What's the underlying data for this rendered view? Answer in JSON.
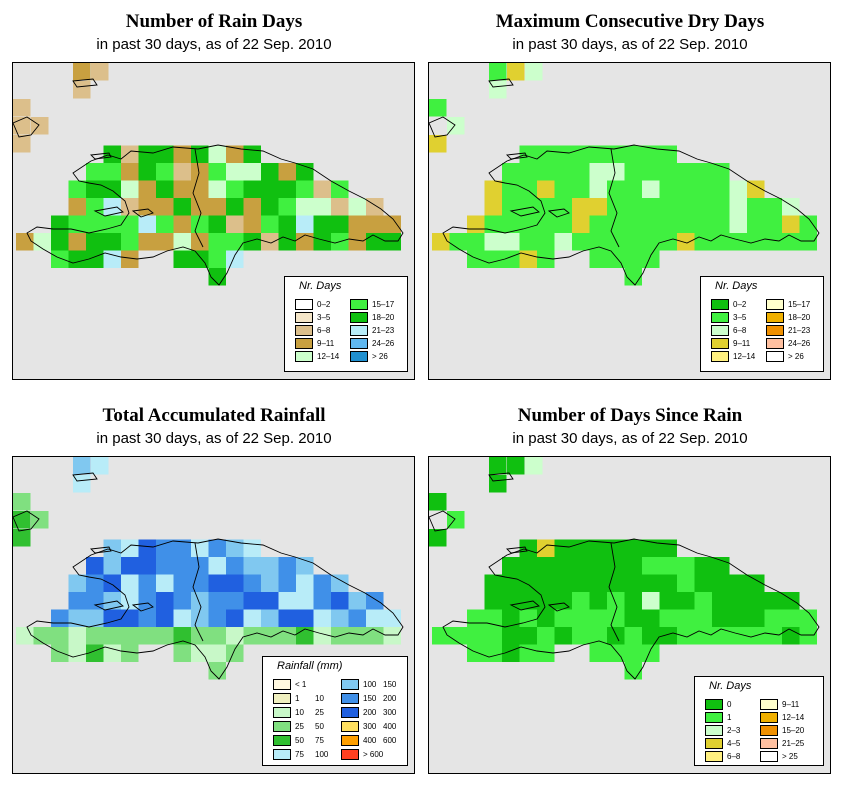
{
  "colors": {
    "map_background": "#e5e5e5",
    "outline": "#000000"
  },
  "panels": [
    {
      "id": "rain-days",
      "title": "Number of Rain Days",
      "subtitle": "in past 30 days, as of  22 Sep. 2010",
      "legend_title": "Nr. Days",
      "legend": [
        {
          "label": "0–2",
          "color": "#ffffff"
        },
        {
          "label": "3–5",
          "color": "#f5e6c8"
        },
        {
          "label": "6–8",
          "color": "#dcbf8b"
        },
        {
          "label": "9–11",
          "color": "#c8a040"
        },
        {
          "label": "12–14",
          "color": "#ccffcc"
        },
        {
          "label": "15–17",
          "color": "#40f040"
        },
        {
          "label": "18–20",
          "color": "#10c010"
        },
        {
          "label": "21–23",
          "color": "#b8ecf8"
        },
        {
          "label": "24–26",
          "color": "#60b8f0"
        },
        {
          "label": "> 26",
          "color": "#2090d0"
        }
      ],
      "grid": {
        "cols": 23,
        "rows": 14,
        "cells": [
          "3.3.........................................",
          ".3..............................................",
          "4.2.............................................",
          "44..............................................",
          ".....3.3436335534.......................",
          "...3.56665645555553.........",
          "...2.6566656554555535.......",
          "...24566665656565544.........",
          "..4.3456666566565434.....",
          ".5554656564666633336554..",
          ".355555555566545544553.",
          "...55.3..5435533.5..........",
          "........3.3.....................",
          "..........2.4..................."
        ]
      }
    },
    {
      "id": "max-dry-days",
      "title": "Maximum Consecutive Dry Days",
      "subtitle": "in past 30 days, as of  22 Sep. 2010",
      "legend_title": "Nr. Days",
      "legend": [
        {
          "label": "0–2",
          "color": "#10c010"
        },
        {
          "label": "3–5",
          "color": "#40f040"
        },
        {
          "label": "6–8",
          "color": "#ccffcc"
        },
        {
          "label": "9–11",
          "color": "#e0d030"
        },
        {
          "label": "12–14",
          "color": "#fff080"
        },
        {
          "label": "15–17",
          "color": "#ffffcc"
        },
        {
          "label": "18–20",
          "color": "#f0b000"
        },
        {
          "label": "21–23",
          "color": "#f09000"
        },
        {
          "label": "24–26",
          "color": "#ffc0a0"
        },
        {
          "label": "> 26",
          "color": "#ffffff"
        }
      ]
    },
    {
      "id": "total-rainfall",
      "title": "Total Accumulated Rainfall",
      "subtitle": "in past 30 days, as of  22 Sep. 2010",
      "legend_title": "Rainfall (mm)",
      "legend": [
        {
          "label": "< 1",
          "label2": "",
          "color": "#fff8e0"
        },
        {
          "label": "1",
          "label2": "10",
          "color": "#f0f0c0"
        },
        {
          "label": "10",
          "label2": "25",
          "color": "#c8f8c8"
        },
        {
          "label": "25",
          "label2": "50",
          "color": "#80e080"
        },
        {
          "label": "50",
          "label2": "75",
          "color": "#30c030"
        },
        {
          "label": "75",
          "label2": "100",
          "color": "#b8ecf8"
        },
        {
          "label": "100",
          "label2": "150",
          "color": "#80c8f0"
        },
        {
          "label": "150",
          "label2": "200",
          "color": "#4090e8"
        },
        {
          "label": "200",
          "label2": "300",
          "color": "#2060e0"
        },
        {
          "label": "300",
          "label2": "400",
          "color": "#ffe060"
        },
        {
          "label": "400",
          "label2": "600",
          "color": "#ffa000"
        },
        {
          "label": "> 600",
          "label2": "",
          "color": "#ff4020"
        }
      ]
    },
    {
      "id": "days-since-rain",
      "title": "Number of Days Since Rain",
      "subtitle": "in past 30 days, as of  22 Sep. 2010",
      "legend_title": "Nr. Days",
      "legend": [
        {
          "label": "0",
          "color": "#10c010"
        },
        {
          "label": "1",
          "color": "#40f040"
        },
        {
          "label": "2–3",
          "color": "#ccffcc"
        },
        {
          "label": "4–5",
          "color": "#e0d030"
        },
        {
          "label": "6–8",
          "color": "#fff080"
        },
        {
          "label": "9–11",
          "color": "#ffffcc"
        },
        {
          "label": "12–14",
          "color": "#f0b000"
        },
        {
          "label": "15–20",
          "color": "#f09000"
        },
        {
          "label": "21–25",
          "color": "#ffc0a0"
        },
        {
          "label": "> 25",
          "color": "#ffffff"
        }
      ]
    }
  ]
}
